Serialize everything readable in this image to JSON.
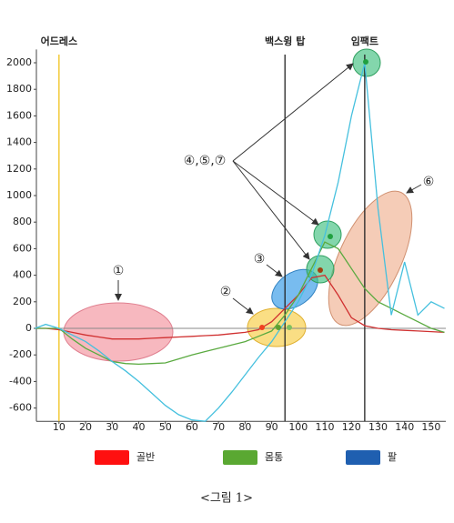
{
  "chart_data": {
    "type": "line",
    "x": [
      1,
      5,
      10,
      15,
      20,
      25,
      30,
      35,
      40,
      45,
      50,
      55,
      60,
      65,
      70,
      75,
      80,
      85,
      90,
      95,
      100,
      105,
      110,
      115,
      120,
      125,
      130,
      135,
      140,
      145,
      150,
      155
    ],
    "series": [
      {
        "name": "골반",
        "color": "#d03030",
        "legend_color": "#ff1010",
        "values": [
          0,
          0,
          -10,
          -30,
          -50,
          -65,
          -80,
          -80,
          -80,
          -75,
          -70,
          -65,
          -60,
          -55,
          -50,
          -40,
          -30,
          -10,
          50,
          150,
          250,
          380,
          400,
          250,
          80,
          20,
          0,
          -10,
          -15,
          -20,
          -25,
          -30
        ]
      },
      {
        "name": "몸통",
        "color": "#5aaa40",
        "legend_color": "#5aa832",
        "values": [
          0,
          0,
          0,
          -80,
          -150,
          -200,
          -250,
          -265,
          -270,
          -265,
          -260,
          -230,
          -200,
          -175,
          -150,
          -125,
          -100,
          -60,
          -20,
          100,
          250,
          450,
          650,
          600,
          450,
          300,
          200,
          150,
          100,
          50,
          0,
          -30
        ]
      },
      {
        "name": "팔",
        "color": "#45c0de",
        "legend_color": "#1f5fb0",
        "values": [
          0,
          30,
          0,
          -50,
          -100,
          -170,
          -250,
          -320,
          -400,
          -490,
          -580,
          -650,
          -690,
          -700,
          -600,
          -480,
          -350,
          -220,
          -100,
          50,
          200,
          400,
          700,
          1100,
          1600,
          2000,
          900,
          100,
          500,
          100,
          200,
          150
        ]
      }
    ],
    "xlim": [
      1.5,
      155.5
    ],
    "ylim": [
      -700,
      2100
    ],
    "xticks": [
      10,
      20,
      30,
      40,
      50,
      60,
      70,
      80,
      90,
      100,
      110,
      120,
      130,
      140,
      150
    ],
    "yticks": [
      2000,
      1800,
      1600,
      1400,
      1200,
      1000,
      800,
      600,
      400,
      200,
      0,
      -200,
      -400,
      -600
    ],
    "markers": [
      {
        "label": "어드레스",
        "x": 10,
        "color": "#f2c21a"
      },
      {
        "label": "백스윙 탑",
        "x": 95,
        "color": "#222222"
      },
      {
        "label": "임팩트",
        "x": 125,
        "color": "#222222"
      }
    ],
    "callouts": [
      "①",
      "②",
      "③",
      "④,⑤,⑦",
      "⑥"
    ],
    "caption": "<그림 1>"
  }
}
